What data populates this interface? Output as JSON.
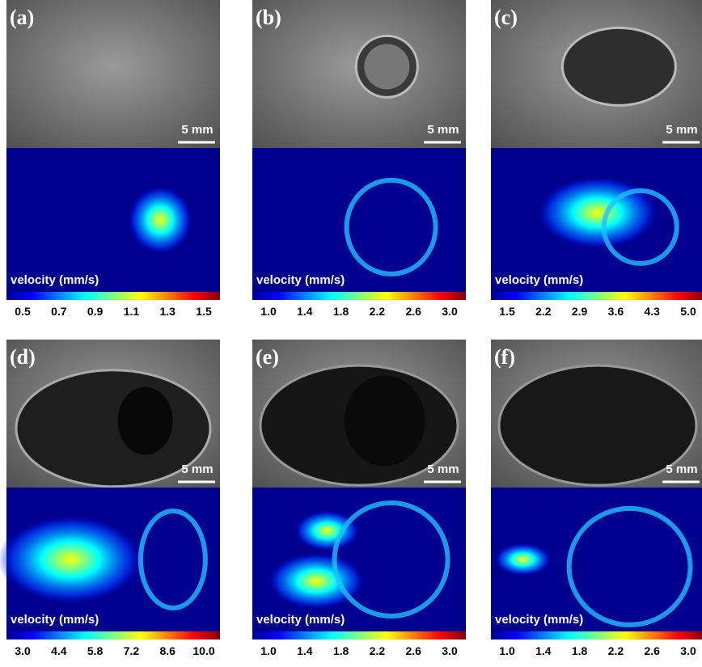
{
  "panels": [
    {
      "label": "(a)",
      "scale": "5 mm",
      "velocity_label": "velocity (mm/s)",
      "colorbar_ticks": [
        "0.5",
        "0.7",
        "0.9",
        "1.1",
        "1.3",
        "1.5"
      ]
    },
    {
      "label": "(b)",
      "scale": "5 mm",
      "velocity_label": "velocity (mm/s)",
      "colorbar_ticks": [
        "1.0",
        "1.4",
        "1.8",
        "2.2",
        "2.6",
        "3.0"
      ]
    },
    {
      "label": "(c)",
      "scale": "5 mm",
      "velocity_label": "velocity (mm/s)",
      "colorbar_ticks": [
        "1.5",
        "2.2",
        "2.9",
        "3.6",
        "4.3",
        "5.0"
      ]
    },
    {
      "label": "(d)",
      "scale": "5 mm",
      "velocity_label": "velocity (mm/s)",
      "colorbar_ticks": [
        "3.0",
        "4.4",
        "5.8",
        "7.2",
        "8.6",
        "10.0"
      ]
    },
    {
      "label": "(e)",
      "scale": "5 mm",
      "velocity_label": "velocity (mm/s)",
      "colorbar_ticks": [
        "1.0",
        "1.4",
        "1.8",
        "2.2",
        "2.6",
        "3.0"
      ]
    },
    {
      "label": "(f)",
      "scale": "5 mm",
      "velocity_label": "velocity (mm/s)",
      "colorbar_ticks": [
        "1.0",
        "1.4",
        "1.8",
        "2.2",
        "2.6",
        "3.0"
      ]
    }
  ]
}
